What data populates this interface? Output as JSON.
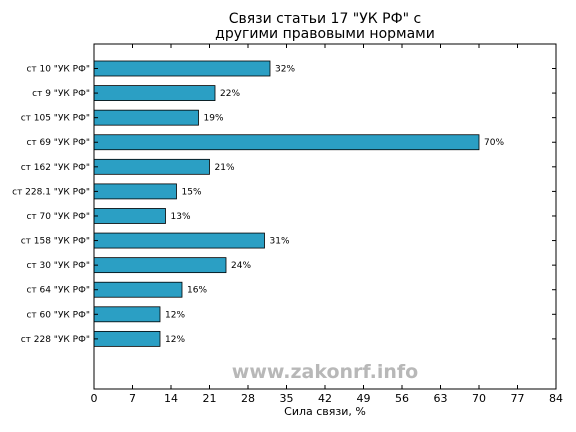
{
  "chart_data": {
    "type": "bar",
    "orientation": "horizontal",
    "title": [
      "Связи статьи 17 \"УК РФ\" с",
      "другими правовыми нормами"
    ],
    "xlabel": "Сила связи, %",
    "ylabel": "",
    "xlim": [
      0,
      84
    ],
    "xticks": [
      0,
      7,
      14,
      21,
      28,
      35,
      42,
      49,
      56,
      63,
      70,
      77,
      84
    ],
    "categories": [
      "ст 10 \"УК РФ\"",
      "ст 9 \"УК РФ\"",
      "ст 105 \"УК РФ\"",
      "ст 69 \"УК РФ\"",
      "ст 162 \"УК РФ\"",
      "ст 228.1 \"УК РФ\"",
      "ст 70 \"УК РФ\"",
      "ст 158 \"УК РФ\"",
      "ст 30 \"УК РФ\"",
      "ст 64 \"УК РФ\"",
      "ст 60 \"УК РФ\"",
      "ст 228 \"УК РФ\""
    ],
    "values": [
      32,
      22,
      19,
      70,
      21,
      15,
      13,
      31,
      24,
      16,
      12,
      12
    ],
    "value_labels": [
      "32%",
      "22%",
      "19%",
      "70%",
      "21%",
      "15%",
      "13%",
      "31%",
      "24%",
      "16%",
      "12%",
      "12%"
    ],
    "bar_color": "#2b9fc4",
    "grid": false,
    "legend": "none"
  },
  "watermark": "www.zakonrf.info"
}
